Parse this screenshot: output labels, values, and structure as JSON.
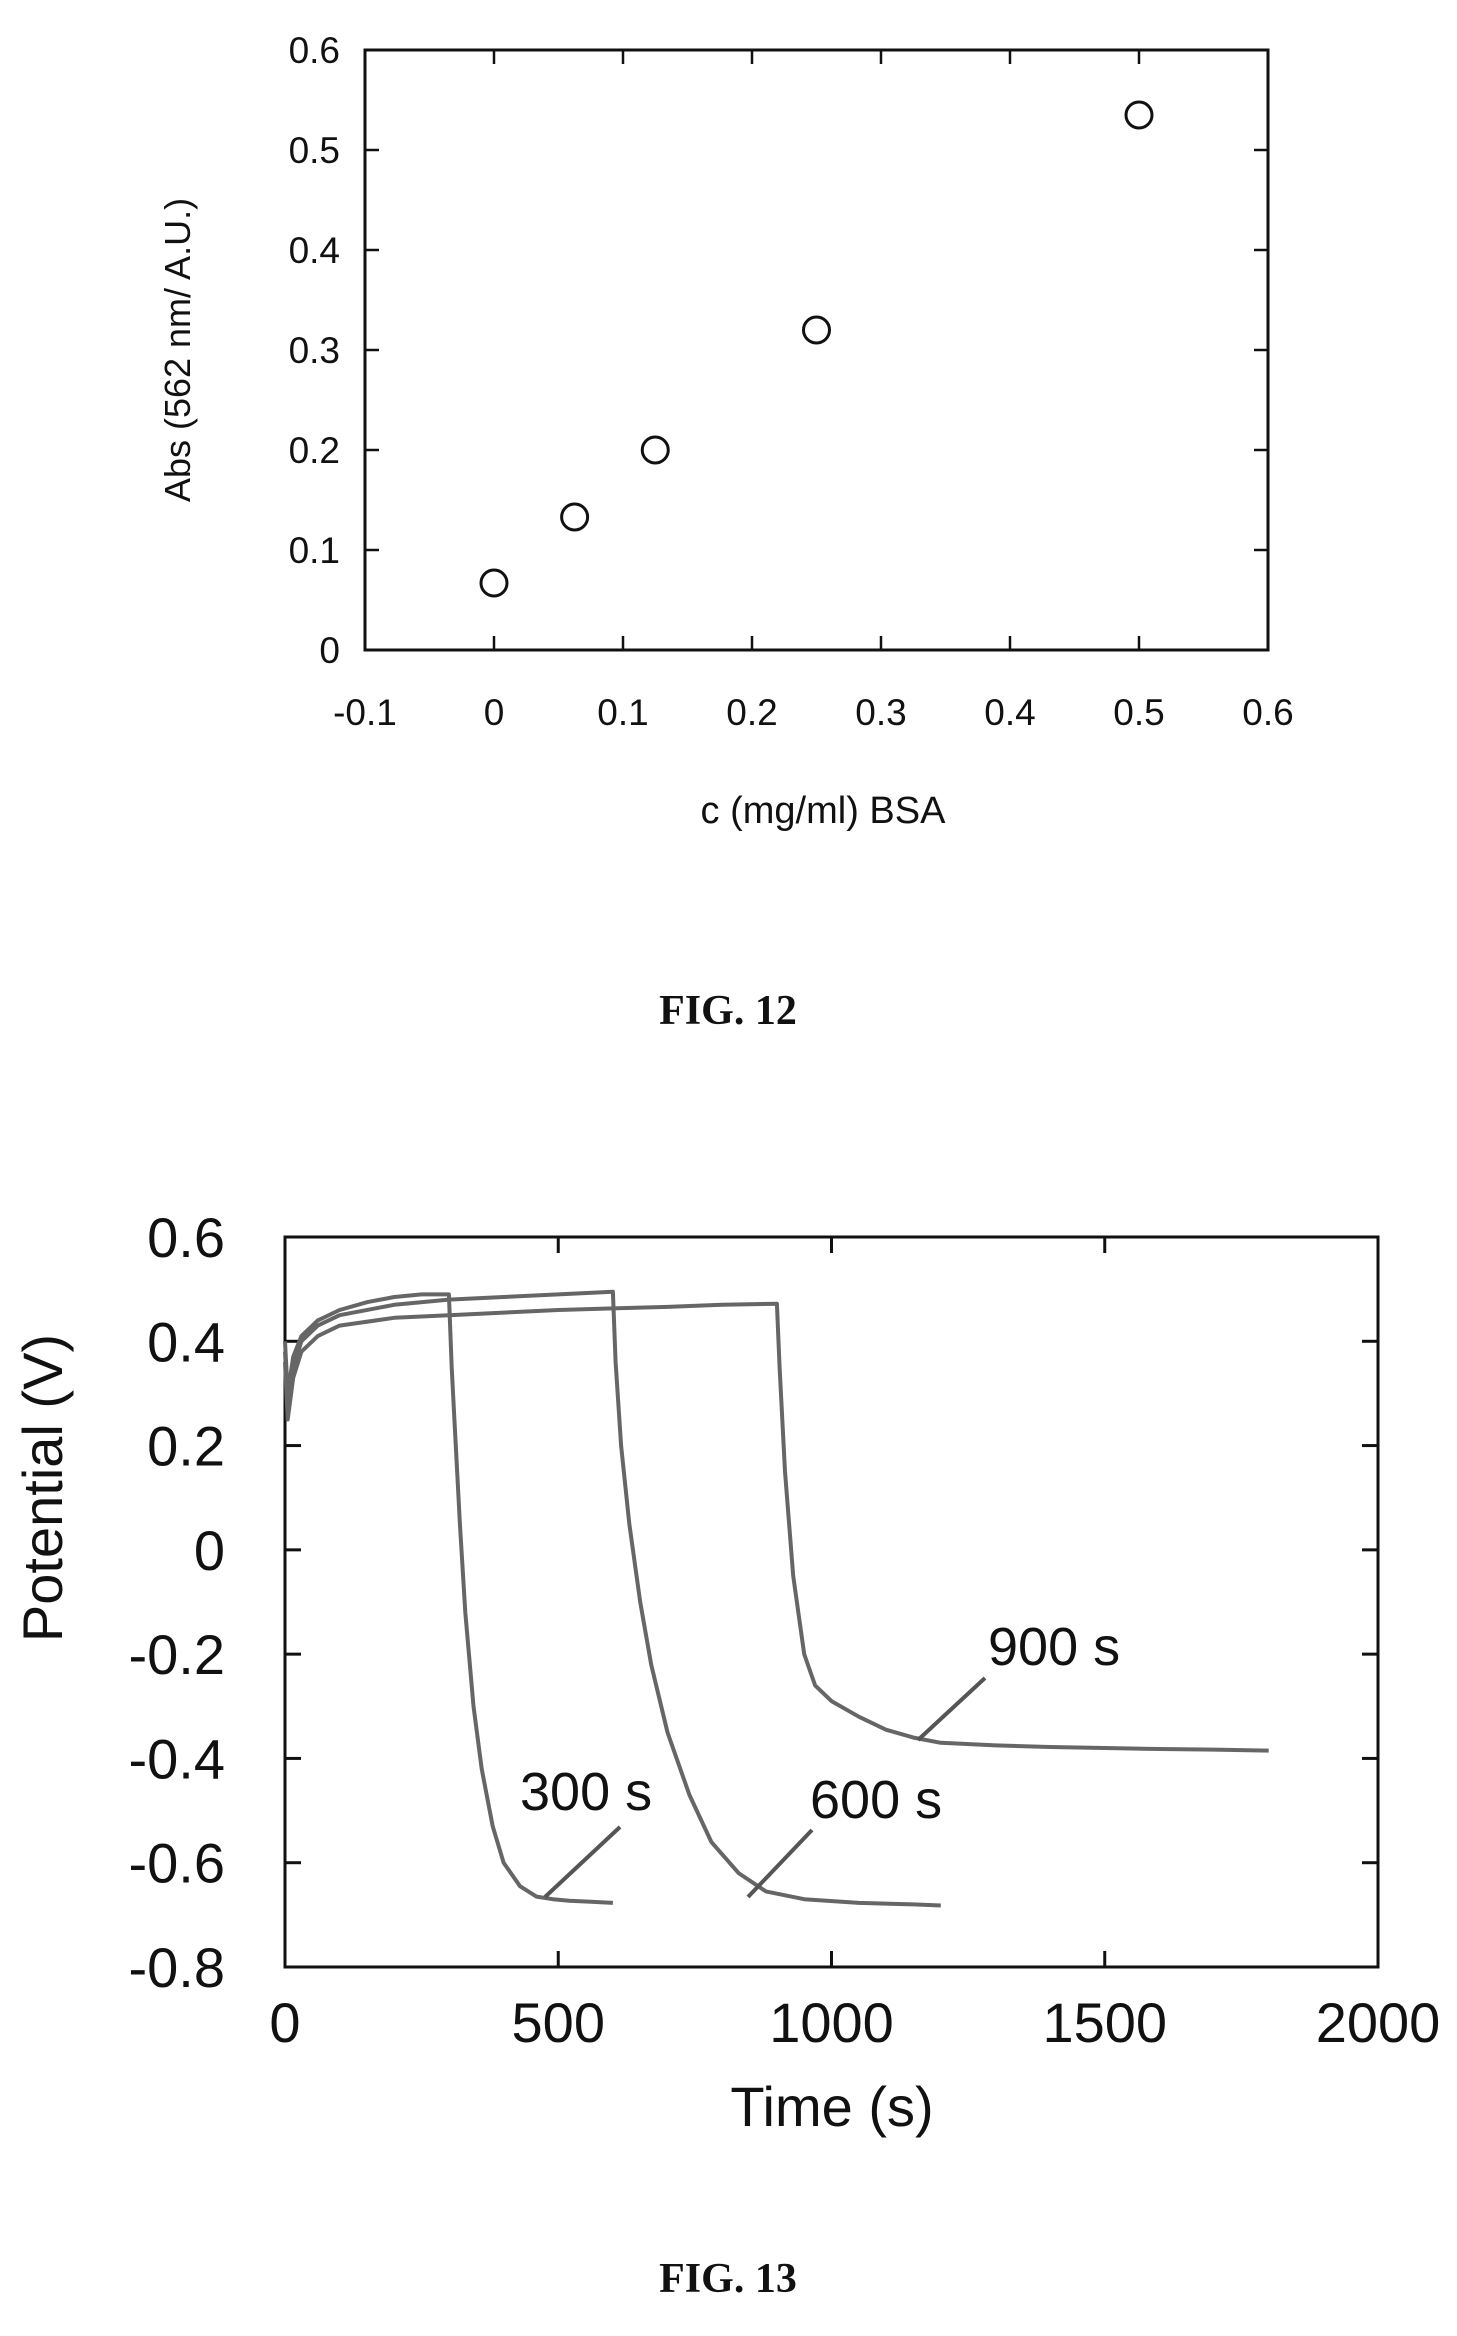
{
  "chart_data": [
    {
      "type": "scatter",
      "title": "",
      "xlabel": "c (mg/ml) BSA",
      "ylabel": "Abs (562 nm/ A.U.)",
      "xlim": [
        -0.1,
        0.6
      ],
      "ylim": [
        0,
        0.6
      ],
      "xticks": [
        "-0.1",
        "0",
        "0.1",
        "0.2",
        "0.3",
        "0.4",
        "0.5",
        "0.6"
      ],
      "yticks": [
        "0",
        "0.1",
        "0.2",
        "0.3",
        "0.4",
        "0.5",
        "0.6"
      ],
      "x": [
        0,
        0.0625,
        0.125,
        0.25,
        0.5
      ],
      "y": [
        0.067,
        0.133,
        0.2,
        0.32,
        0.535
      ],
      "grid": false,
      "marker": "open-circle",
      "caption": "FIG. 12"
    },
    {
      "type": "line",
      "title": "",
      "xlabel": "Time (s)",
      "ylabel": "Potential (V)",
      "xlim": [
        0,
        2000
      ],
      "ylim": [
        -0.8,
        0.6
      ],
      "xticks": [
        "0",
        "500",
        "1000",
        "1500",
        "2000"
      ],
      "yticks": [
        "0.6",
        "0.4",
        "0.2",
        "0",
        "-0.2",
        "-0.4",
        "-0.6",
        "-0.8"
      ],
      "grid": false,
      "caption": "FIG. 13",
      "series": [
        {
          "annotation": "300 s",
          "x": [
            0,
            5,
            15,
            30,
            60,
            100,
            150,
            200,
            250,
            300,
            305,
            310,
            320,
            330,
            345,
            360,
            380,
            400,
            430,
            460,
            490,
            520,
            560,
            600
          ],
          "y": [
            0.4,
            0.3,
            0.37,
            0.41,
            0.44,
            0.46,
            0.475,
            0.485,
            0.49,
            0.49,
            0.35,
            0.25,
            0.05,
            -0.12,
            -0.3,
            -0.42,
            -0.53,
            -0.6,
            -0.645,
            -0.665,
            -0.67,
            -0.673,
            -0.675,
            -0.677
          ]
        },
        {
          "annotation": "600 s",
          "x": [
            0,
            5,
            15,
            30,
            60,
            100,
            200,
            300,
            400,
            500,
            600,
            605,
            615,
            630,
            650,
            670,
            700,
            740,
            780,
            830,
            880,
            950,
            1050,
            1150,
            1200
          ],
          "y": [
            0.38,
            0.28,
            0.35,
            0.4,
            0.43,
            0.45,
            0.47,
            0.48,
            0.485,
            0.49,
            0.495,
            0.36,
            0.2,
            0.05,
            -0.1,
            -0.22,
            -0.35,
            -0.47,
            -0.56,
            -0.62,
            -0.655,
            -0.67,
            -0.677,
            -0.68,
            -0.682
          ]
        },
        {
          "annotation": "900 s",
          "x": [
            0,
            5,
            15,
            30,
            60,
            100,
            200,
            300,
            400,
            500,
            600,
            700,
            800,
            900,
            905,
            915,
            930,
            950,
            970,
            1000,
            1050,
            1100,
            1150,
            1200,
            1300,
            1400,
            1500,
            1600,
            1700,
            1800
          ],
          "y": [
            0.36,
            0.25,
            0.33,
            0.38,
            0.41,
            0.43,
            0.445,
            0.45,
            0.455,
            0.46,
            0.463,
            0.466,
            0.47,
            0.472,
            0.35,
            0.15,
            -0.05,
            -0.2,
            -0.26,
            -0.29,
            -0.32,
            -0.345,
            -0.36,
            -0.37,
            -0.375,
            -0.378,
            -0.38,
            -0.382,
            -0.383,
            -0.385
          ]
        }
      ]
    }
  ]
}
